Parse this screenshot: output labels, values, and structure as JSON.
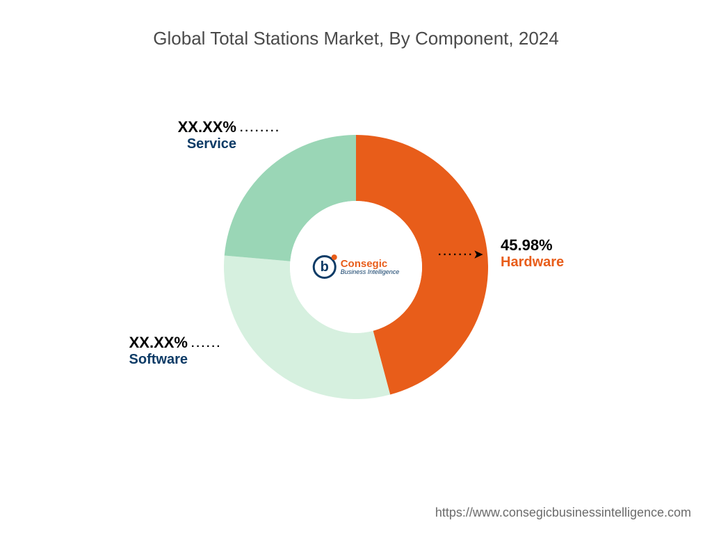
{
  "title": {
    "text": "Global Total Stations Market, By Component, 2024",
    "fontsize": 26,
    "color": "#4a4a4a"
  },
  "chart": {
    "type": "donut",
    "outer_radius": 190,
    "inner_radius": 95,
    "background_color": "#ffffff",
    "slices": [
      {
        "key": "hardware",
        "label": "Hardware",
        "pct_text": "45.98%",
        "value": 45.98,
        "color": "#e85d1a",
        "label_color": "#e85d1a",
        "start_deg": 0,
        "end_deg": 165
      },
      {
        "key": "software",
        "label": "Software",
        "pct_text": "XX.XX%",
        "value": 30.0,
        "color": "#d6f0df",
        "label_color": "#0d3b66",
        "start_deg": 165,
        "end_deg": 275
      },
      {
        "key": "service",
        "label": "Service",
        "pct_text": "XX.XX%",
        "value": 24.0,
        "color": "#9ad6b6",
        "label_color": "#0d3b66",
        "start_deg": 275,
        "end_deg": 360
      }
    ]
  },
  "leaders": {
    "hardware": "·······",
    "service": "········",
    "software": "······",
    "arrow": "➤"
  },
  "logo": {
    "mark_letter": "b",
    "mark_border_color": "#0d3b66",
    "mark_text_color": "#0d3b66",
    "mark_dot_color": "#e85d1a",
    "name": "Consegic",
    "name_color": "#e85d1a",
    "tagline": "Business Intelligence",
    "tagline_color": "#0d3b66"
  },
  "footer": {
    "url": "https://www.consegicbusinessintelligence.com",
    "color": "#6b6b6b",
    "fontsize": 18
  }
}
